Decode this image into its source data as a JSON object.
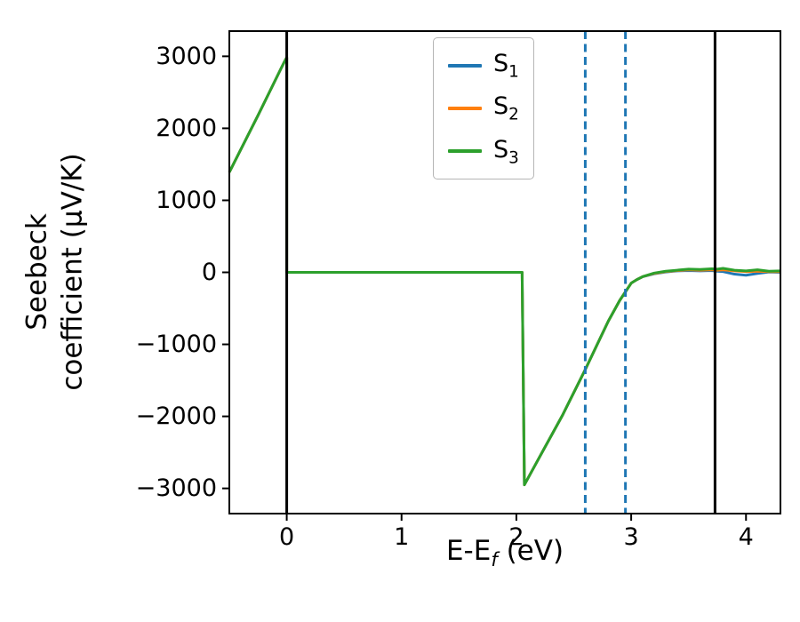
{
  "chart_data": {
    "type": "line",
    "title": "",
    "xlabel": {
      "prefix": "E-E",
      "sub": "f",
      "suffix": " (eV)"
    },
    "ylabel_lines": [
      "Seebeck",
      "coefficient  (μV/K)"
    ],
    "xlim": [
      -0.5,
      4.3
    ],
    "ylim": [
      -3350,
      3350
    ],
    "xticks": [
      0,
      1,
      2,
      3,
      4
    ],
    "yticks": [
      -3000,
      -2000,
      -1000,
      0,
      1000,
      2000,
      3000
    ],
    "grid": false,
    "legend_position": "upper center",
    "background": "#ffffff",
    "axis_color": "#000000",
    "x": [
      -0.5,
      -0.25,
      -0.05,
      -0.02,
      0.0,
      0.0,
      2.05,
      2.05,
      2.07,
      2.2,
      2.4,
      2.6,
      2.8,
      2.9,
      3.0,
      3.05,
      3.1,
      3.2,
      3.3,
      3.4,
      3.5,
      3.6,
      3.7,
      3.75,
      3.8,
      3.9,
      4.0,
      4.1,
      4.2,
      4.3
    ],
    "series": [
      {
        "name": "S1",
        "label_base": "S",
        "label_sub": "1",
        "color": "#1f77b4",
        "y": [
          1390,
          2180,
          2830,
          2925,
          2985,
          0,
          0,
          0,
          -2950,
          -2570,
          -1990,
          -1350,
          -680,
          -390,
          -150,
          -100,
          -60,
          -20,
          5,
          20,
          25,
          20,
          25,
          15,
          10,
          -25,
          -40,
          -15,
          5,
          0
        ]
      },
      {
        "name": "S2",
        "label_base": "S",
        "label_sub": "2",
        "color": "#ff7f0e",
        "y": [
          1390,
          2180,
          2830,
          2925,
          2985,
          0,
          0,
          0,
          -2950,
          -2570,
          -1990,
          -1350,
          -680,
          -390,
          -150,
          -100,
          -60,
          -15,
          10,
          25,
          35,
          30,
          35,
          30,
          35,
          20,
          10,
          15,
          10,
          10
        ]
      },
      {
        "name": "S3",
        "label_base": "S",
        "label_sub": "3",
        "color": "#2ca02c",
        "y": [
          1390,
          2180,
          2830,
          2925,
          2985,
          0,
          0,
          0,
          -2950,
          -2570,
          -1990,
          -1350,
          -680,
          -390,
          -150,
          -100,
          -60,
          -10,
          15,
          30,
          45,
          40,
          50,
          45,
          55,
          30,
          20,
          35,
          15,
          20
        ]
      }
    ],
    "vlines": [
      {
        "x": 0.0,
        "style": "solid",
        "color": "#000000"
      },
      {
        "x": 3.73,
        "style": "solid",
        "color": "#000000"
      },
      {
        "x": 2.6,
        "style": "dashed",
        "color": "#1f77b4"
      },
      {
        "x": 2.95,
        "style": "dashed",
        "color": "#1f77b4"
      }
    ]
  }
}
